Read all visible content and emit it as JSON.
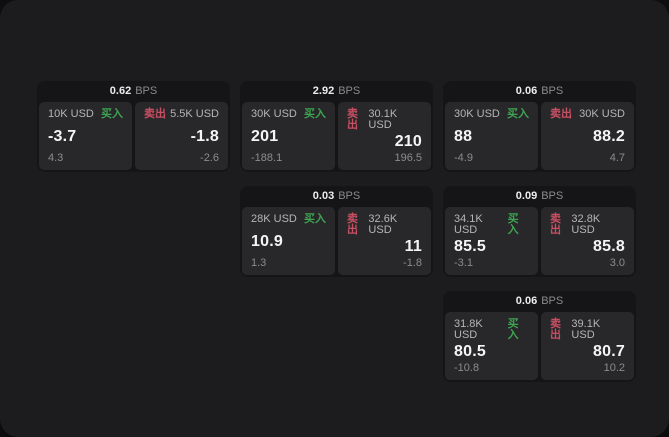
{
  "colors": {
    "buy": "#3ea352",
    "sell": "#c94f63",
    "window_bg": "#1c1c1e",
    "card_bg": "#151517",
    "pane_bg": "#28282a"
  },
  "cards": [
    {
      "bps_value": "0.62",
      "bps_unit": "BPS",
      "buy": {
        "size": "10K USD",
        "side_label": "买入",
        "price": "-3.7",
        "delta": "4.3"
      },
      "sell": {
        "side_label": "卖出",
        "size": "5.5K USD",
        "price": "-1.8",
        "delta": "-2.6"
      },
      "col": 1,
      "row": 1
    },
    {
      "bps_value": "2.92",
      "bps_unit": "BPS",
      "buy": {
        "size": "30K USD",
        "side_label": "买入",
        "price": "201",
        "delta": "-188.1"
      },
      "sell": {
        "side_label": "卖出",
        "size": "30.1K USD",
        "price": "210",
        "delta": "196.5"
      },
      "col": 2,
      "row": 1
    },
    {
      "bps_value": "0.06",
      "bps_unit": "BPS",
      "buy": {
        "size": "30K USD",
        "side_label": "买入",
        "price": "88",
        "delta": "-4.9"
      },
      "sell": {
        "side_label": "卖出",
        "size": "30K USD",
        "price": "88.2",
        "delta": "4.7"
      },
      "col": 3,
      "row": 1
    },
    {
      "bps_value": "0.03",
      "bps_unit": "BPS",
      "buy": {
        "size": "28K USD",
        "side_label": "买入",
        "price": "10.9",
        "delta": "1.3"
      },
      "sell": {
        "side_label": "卖出",
        "size": "32.6K USD",
        "price": "11",
        "delta": "-1.8"
      },
      "col": 2,
      "row": 2
    },
    {
      "bps_value": "0.09",
      "bps_unit": "BPS",
      "buy": {
        "size": "34.1K USD",
        "side_label": "买入",
        "price": "85.5",
        "delta": "-3.1"
      },
      "sell": {
        "side_label": "卖出",
        "size": "32.8K USD",
        "price": "85.8",
        "delta": "3.0"
      },
      "col": 3,
      "row": 2
    },
    {
      "bps_value": "0.06",
      "bps_unit": "BPS",
      "buy": {
        "size": "31.8K USD",
        "side_label": "买入",
        "price": "80.5",
        "delta": "-10.8"
      },
      "sell": {
        "side_label": "卖出",
        "size": "39.1K USD",
        "price": "80.7",
        "delta": "10.2"
      },
      "col": 3,
      "row": 3
    }
  ]
}
